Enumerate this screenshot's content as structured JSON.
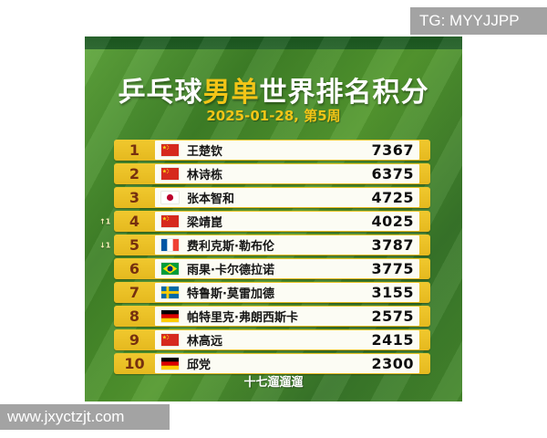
{
  "watermarks": {
    "tg": "TG: MYYJJPP",
    "site": "www.jxyctzjt.com"
  },
  "header": {
    "title_part1": "乒乓球",
    "title_highlight": "男单",
    "title_part2": "世界排名积分",
    "subtitle": "2025-01-28, 第5周"
  },
  "footer": {
    "credit": "十七遛遛遛"
  },
  "colors": {
    "card_green": "#4a8f2d",
    "top_strip_green": "#1d5c21",
    "row_yellow": "#ecc227",
    "rank_text": "#76300f",
    "title_highlight": "#f3c517",
    "watermark_gray": "#a3a3a3"
  },
  "ranking": {
    "rows": [
      {
        "rank": "1",
        "movement": "",
        "flag": "cn",
        "country": "China",
        "name": "王楚钦",
        "points": "7367"
      },
      {
        "rank": "2",
        "movement": "",
        "flag": "cn",
        "country": "China",
        "name": "林诗栋",
        "points": "6375"
      },
      {
        "rank": "3",
        "movement": "",
        "flag": "jp",
        "country": "Japan",
        "name": "张本智和",
        "points": "4725"
      },
      {
        "rank": "4",
        "movement": "↑1",
        "flag": "cn",
        "country": "China",
        "name": "梁靖崑",
        "points": "4025"
      },
      {
        "rank": "5",
        "movement": "↓1",
        "flag": "fr",
        "country": "France",
        "name": "费利克斯·勒布伦",
        "points": "3787"
      },
      {
        "rank": "6",
        "movement": "",
        "flag": "br",
        "country": "Brazil",
        "name": "雨果·卡尔德拉诺",
        "points": "3775"
      },
      {
        "rank": "7",
        "movement": "",
        "flag": "se",
        "country": "Sweden",
        "name": "特鲁斯·莫雷加德",
        "points": "3155"
      },
      {
        "rank": "8",
        "movement": "",
        "flag": "de",
        "country": "Germany",
        "name": "帕特里克·弗朗西斯卡",
        "points": "2575"
      },
      {
        "rank": "9",
        "movement": "",
        "flag": "cn",
        "country": "China",
        "name": "林高远",
        "points": "2415"
      },
      {
        "rank": "10",
        "movement": "",
        "flag": "de",
        "country": "Germany",
        "name": "邱党",
        "points": "2300"
      }
    ]
  }
}
